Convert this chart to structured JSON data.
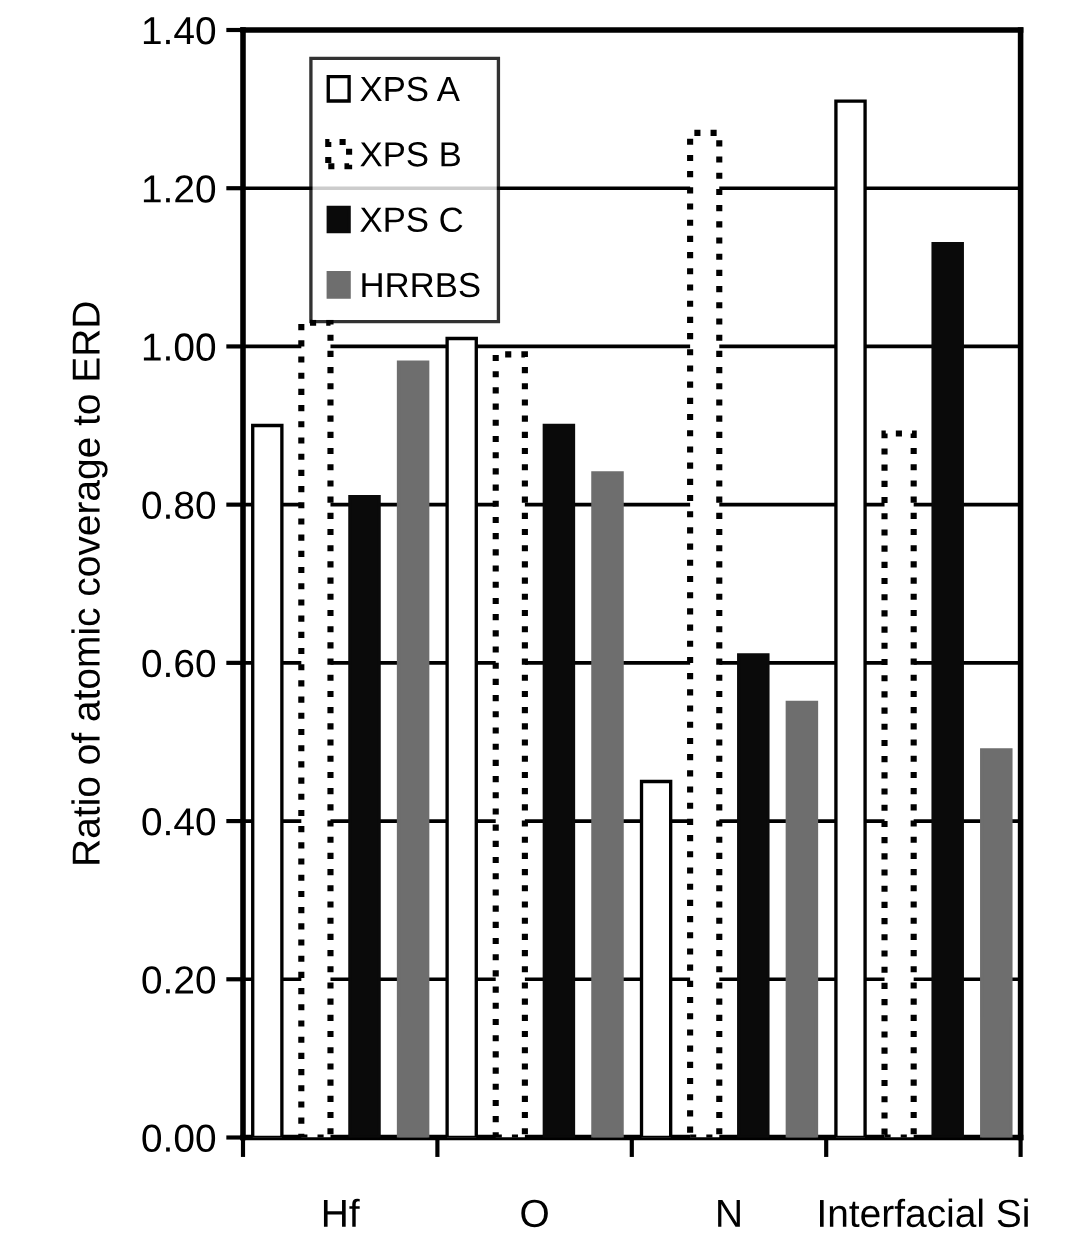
{
  "chart_data": {
    "type": "bar",
    "ylabel": "Ratio of atomic coverage to ERD",
    "categories": [
      "Hf",
      "O",
      "N",
      "Interfacial Si"
    ],
    "series": [
      {
        "name": "XPS A",
        "color": "#ffffff",
        "line_style": "solid",
        "values": [
          0.9,
          1.01,
          0.45,
          1.31
        ]
      },
      {
        "name": "XPS B",
        "color": "#ffffff",
        "line_style": "dotted",
        "values": [
          1.03,
          0.99,
          1.27,
          0.89
        ]
      },
      {
        "name": "XPS C",
        "color": "#0a0a0a",
        "line_style": "solid",
        "values": [
          0.81,
          0.9,
          0.61,
          1.13
        ]
      },
      {
        "name": "HRRBS",
        "color": "#6e6e6e",
        "line_style": "solid",
        "values": [
          0.98,
          0.84,
          0.55,
          0.49
        ]
      }
    ],
    "ylim": [
      0,
      1.4
    ],
    "yticks": [
      {
        "value": 0,
        "label": "0.00"
      },
      {
        "value": 0.2,
        "label": "0.20"
      },
      {
        "value": 0.4,
        "label": "0.40"
      },
      {
        "value": 0.6,
        "label": "0.60"
      },
      {
        "value": 0.8,
        "label": "0.80"
      },
      {
        "value": 1.0,
        "label": "1.00"
      },
      {
        "value": 1.2,
        "label": "1.20"
      },
      {
        "value": 1.4,
        "label": "1.40"
      }
    ],
    "grid": "y",
    "legend": "top left"
  }
}
